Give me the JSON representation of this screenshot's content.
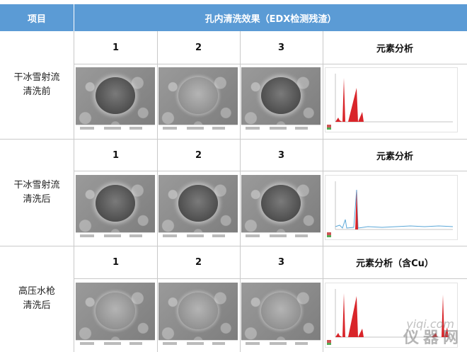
{
  "table": {
    "header": {
      "col1": "项目",
      "col2": "孔内清洗效果（EDX检测残渣）"
    },
    "rows": [
      {
        "label": "干冰雪射流清洗前",
        "label_line1": "干冰雪射流",
        "label_line2": "清洗前",
        "subheaders": [
          "1",
          "2",
          "3",
          "元素分析"
        ]
      },
      {
        "label": "干冰雪射流清洗后",
        "label_line1": "干冰雪射流",
        "label_line2": "清洗后",
        "subheaders": [
          "1",
          "2",
          "3",
          "元素分析"
        ]
      },
      {
        "label": "高压水枪清洗后",
        "label_line1": "高压水枪",
        "label_line2": "清洗后",
        "subheaders": [
          "1",
          "2",
          "3",
          "元素分析（含Cu）"
        ]
      }
    ]
  },
  "watermark": {
    "site": "yiqi.com",
    "text": "仪器网"
  }
}
